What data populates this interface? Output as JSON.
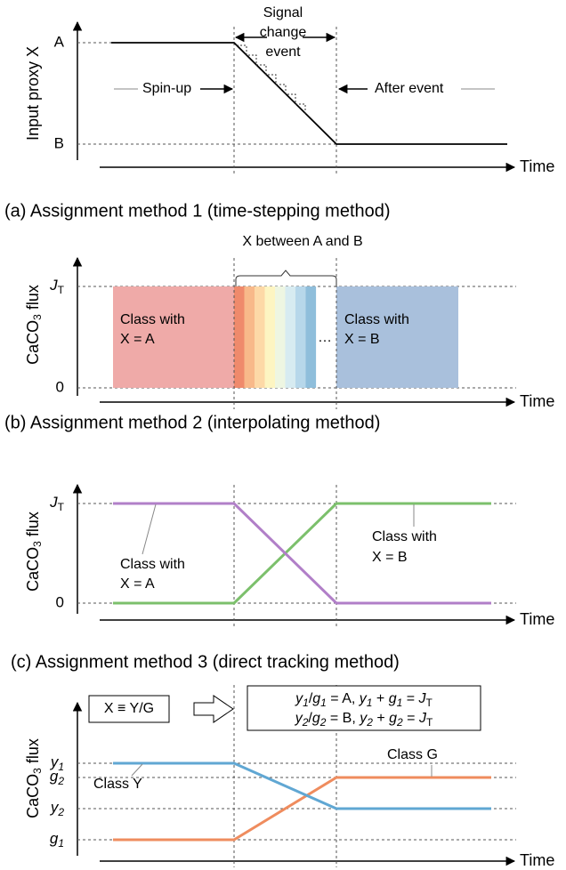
{
  "top": {
    "y_label": "Input proxy X",
    "ticks": [
      "A",
      "B"
    ],
    "x_label": "Time",
    "event": [
      "Signal",
      "change",
      "event"
    ],
    "spin_up": "Spin-up",
    "after_event": "After event"
  },
  "panel_a": {
    "title": "(a) Assignment method 1 (time-stepping method)",
    "y_label": [
      "CaCO",
      "3",
      " flux"
    ],
    "ticks": [
      [
        "J",
        "T"
      ],
      "0"
    ],
    "x_label": "Time",
    "brace_label": "X between A and B",
    "class_a": [
      "Class with",
      "X = A"
    ],
    "class_b": [
      "Class with",
      "X = B"
    ],
    "ellipsis": "…"
  },
  "panel_b": {
    "title": "(b) Assignment method 2 (interpolating method)",
    "y_label": [
      "CaCO",
      "3",
      " flux"
    ],
    "ticks": [
      [
        "J",
        "T"
      ],
      "0"
    ],
    "x_label": "Time",
    "class_a": [
      "Class with",
      "X = A"
    ],
    "class_b": [
      "Class with",
      "X = B"
    ]
  },
  "panel_c": {
    "title": "(c) Assignment method 3 (direct tracking method)",
    "y_label": [
      "CaCO",
      "3",
      " flux"
    ],
    "ticks": [
      [
        "y",
        "1"
      ],
      [
        "g",
        "2"
      ],
      [
        "y",
        "2"
      ],
      [
        "g",
        "1"
      ]
    ],
    "x_label": "Time",
    "ratio": "X ≡ Y/G",
    "equations": [
      [
        "y",
        "1",
        "/",
        "g",
        "1",
        " = A, ",
        "y",
        "1",
        " + ",
        "g",
        "1",
        " = ",
        "J",
        "T"
      ],
      [
        "y",
        "2",
        "/",
        "g",
        "2",
        " = B, ",
        "y",
        "2",
        " + ",
        "g",
        "2",
        " = ",
        "J",
        "T"
      ]
    ],
    "class_y": "Class Y",
    "class_g": "Class G"
  }
}
